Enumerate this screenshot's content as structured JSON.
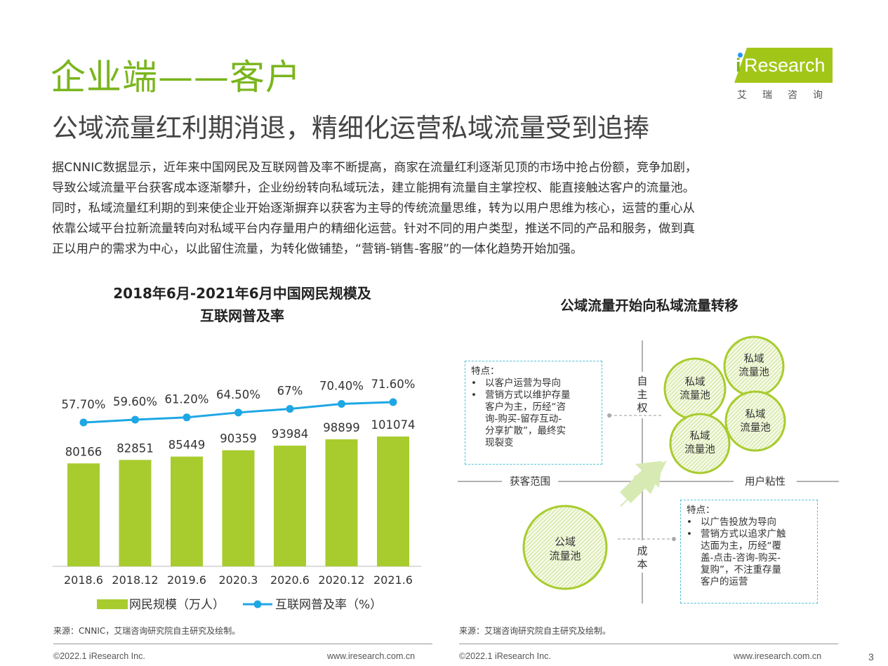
{
  "header": {
    "title": "企业端——客户",
    "subtitle": "公域流量红利期消退，精细化运营私域流量受到追捧"
  },
  "logo": {
    "i": "i",
    "brand": "Research",
    "cn": "艾瑞咨询"
  },
  "intro": [
    "据CNNIC数据显示，近年来中国网民及互联网普及率不断提高，商家在流量红利逐渐见顶的市场中抢占份额，竞争加剧，",
    "导致公域流量平台获客成本逐渐攀升，企业纷纷转向私域玩法，建立能拥有流量自主掌控权、能直接触达客户的流量池。",
    "同时，私域流量红利期的到来使企业开始逐渐摒弃以获客为主导的传统流量思维，转为以用户思维为核心，运营的重心从",
    "依靠公域平台拉新流量转向对私域平台内存量用户的精细化运营。针对不同的用户类型，推送不同的产品和服务，做到真",
    "正以用户的需求为中心，以此留住流量，为转化做铺垫，“营销-销售-客服”的一体化趋势开始加强。"
  ],
  "left_chart": {
    "title_line1": "2018年6月-2021年6月中国网民规模及",
    "title_line2": "互联网普及率",
    "source": "来源：CNNIC，艾瑞咨询研究院自主研究及绘制。"
  },
  "chart_data": {
    "type": "bar",
    "categories": [
      "2018.6",
      "2018.12",
      "2019.6",
      "2020.3",
      "2020.6",
      "2020.12",
      "2021.6"
    ],
    "series": [
      {
        "name": "网民规模（万人）",
        "type": "bar",
        "color": "#a8cc2e",
        "values": [
          80166,
          82851,
          85449,
          90359,
          93984,
          98899,
          101074
        ]
      },
      {
        "name": "互联网普及率（%）",
        "type": "line",
        "color": "#1ea7e4",
        "values": [
          57.7,
          59.6,
          61.2,
          64.5,
          67,
          70.4,
          71.6
        ],
        "labels": [
          "57.70%",
          "59.60%",
          "61.20%",
          "64.50%",
          "67%",
          "70.40%",
          "71.60%"
        ]
      }
    ],
    "legend_position": "bottom"
  },
  "right_diagram": {
    "title": "公域流量开始向私域流量转移",
    "axis_top": "自主权",
    "axis_bottom": "成本",
    "axis_left": "获客范围",
    "axis_right": "用户粘性",
    "private_pool_label": [
      "私域",
      "流量池"
    ],
    "public_pool_label": [
      "公域",
      "流量池"
    ],
    "private_note": {
      "heading": "特点：",
      "bullets": [
        [
          "以客户运营为导向"
        ],
        [
          "营销方式以维护存量",
          "客户为主，历经“咨",
          "询-购买-留存互动-",
          "分享扩散”，最终实",
          "现裂变"
        ]
      ]
    },
    "public_note": {
      "heading": "特点：",
      "bullets": [
        [
          "以广告投放为导向"
        ],
        [
          "营销方式以追求广触",
          "达面为主，历经“覆",
          "盖-点击-咨询-购买-",
          "复购”，不注重存量",
          "客户的运营"
        ]
      ]
    },
    "colors": {
      "pool": "#a8cc2e",
      "arrow": "#d8eab4",
      "note_border": "#4ec3d9"
    },
    "source": "来源：艾瑞咨询研究院自主研究及绘制。"
  },
  "footer": {
    "copyright_left": "©2022.1 iResearch Inc.",
    "url_left": "www.iresearch.com.cn",
    "copyright_right": "©2022.1 iResearch Inc.",
    "url_right": "www.iresearch.com.cn",
    "page": "3"
  }
}
